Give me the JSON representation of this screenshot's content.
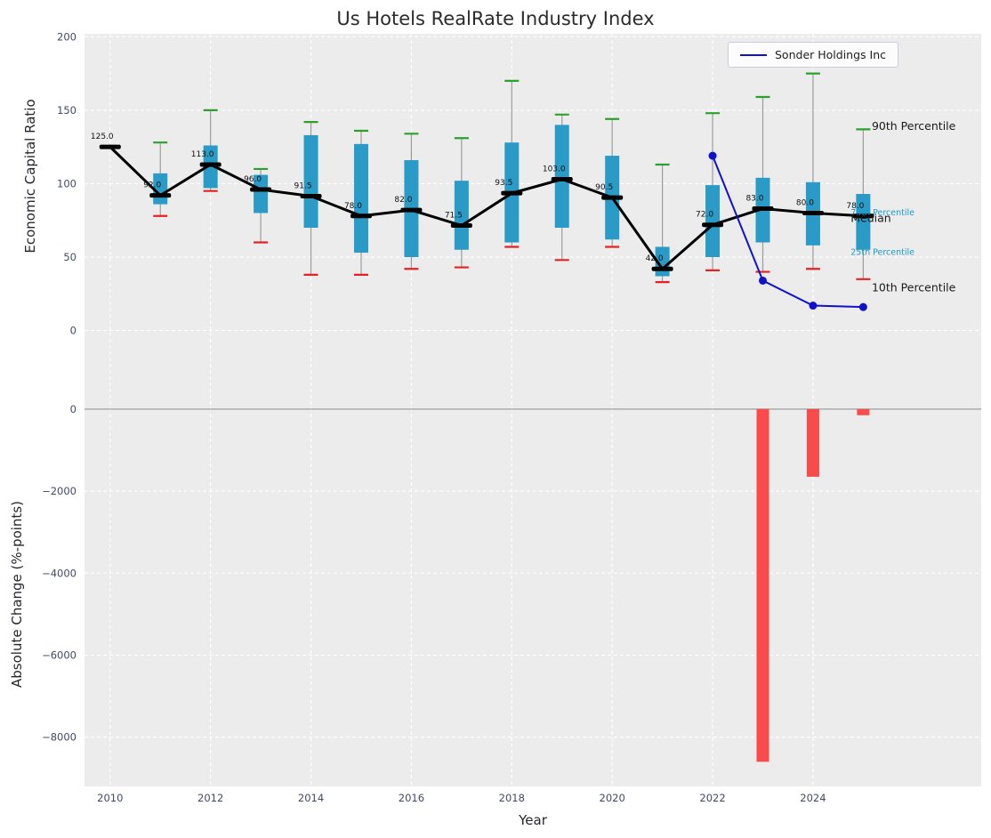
{
  "figure": {
    "title": "Us Hotels RealRate Industry Index",
    "xlabel": "Year",
    "top_ylabel": "Economic Capital Ratio",
    "bottom_ylabel": "Absolute Change (%-points)",
    "legend": {
      "label": "Sonder Holdings Inc"
    }
  },
  "axes": {
    "xlim": [
      2009.49,
      2027.35
    ],
    "xticks": [
      2010,
      2012,
      2014,
      2016,
      2018,
      2020,
      2022,
      2024
    ],
    "top_yticks": [
      200,
      150,
      100,
      50,
      0
    ],
    "bottom_yticks": [
      0,
      -2000,
      -4000,
      -6000,
      -8000
    ]
  },
  "colors": {
    "plot_bg": "#ececec",
    "grid": "#ffffff",
    "box_fill": "#299bc6",
    "whisker": "#9c9c9c",
    "cap_top": "#2ca02c",
    "cap_bottom": "#e52222",
    "median": "#000000",
    "sonder_line": "#1111cc",
    "bar_negative": "#f94b4b",
    "tick_label": "#404a68",
    "percentile_label": "#1a9bc9",
    "zero_line": "#9b9b9b"
  },
  "chart_data": [
    {
      "type": "boxplot+line",
      "title": "Us Hotels RealRate Industry Index",
      "ylabel": "Economic Capital Ratio",
      "ylim": [
        -50.5,
        202
      ],
      "years": [
        2010,
        2011,
        2012,
        2013,
        2014,
        2015,
        2016,
        2017,
        2018,
        2019,
        2020,
        2021,
        2022,
        2023,
        2024,
        2025
      ],
      "median": [
        125.0,
        92.0,
        113.0,
        96.0,
        91.5,
        78.0,
        82.0,
        71.5,
        93.5,
        103.0,
        90.5,
        42.0,
        72.0,
        83.0,
        80.0,
        78.0
      ],
      "q25": [
        125,
        86,
        97,
        80,
        70,
        53,
        50,
        55,
        60,
        70,
        62,
        37,
        50,
        60,
        58,
        55
      ],
      "q75": [
        125,
        107,
        126,
        106,
        133,
        127,
        116,
        102,
        128,
        140,
        119,
        57,
        99,
        104,
        101,
        93
      ],
      "p10": [
        125,
        78,
        95,
        60,
        38,
        38,
        42,
        43,
        57,
        48,
        57,
        33,
        41,
        40,
        42,
        35
      ],
      "p90": [
        125,
        128,
        150,
        110,
        142,
        136,
        134,
        131,
        170,
        147,
        144,
        113,
        148,
        159,
        175,
        137
      ],
      "series": [
        {
          "name": "Sonder Holdings Inc",
          "x": [
            2022,
            2023,
            2024,
            2025
          ],
          "y": [
            119,
            34,
            17,
            16
          ]
        }
      ],
      "annotations": [
        {
          "text": "90th Percentile",
          "x": 2025.17,
          "y": 139,
          "color": "black",
          "size": 12.5
        },
        {
          "text": "75th Percentile",
          "x": 2024.75,
          "y": 81,
          "color": "cyan",
          "size": 9.5
        },
        {
          "text": "Median",
          "x": 2024.75,
          "y": 76.5,
          "color": "black",
          "size": 12.5
        },
        {
          "text": "25th Percentile",
          "x": 2024.75,
          "y": 54,
          "color": "cyan",
          "size": 9.5
        },
        {
          "text": "10th Percentile",
          "x": 2025.17,
          "y": 29,
          "color": "black",
          "size": 12.5
        }
      ],
      "legend": [
        "Sonder Holdings Inc"
      ]
    },
    {
      "type": "bar",
      "ylabel": "Absolute Change (%-points)",
      "xlabel": "Year",
      "ylim": [
        -9200,
        105
      ],
      "x": [
        2023,
        2024,
        2025
      ],
      "values": [
        -8600,
        -1650,
        -150
      ]
    }
  ]
}
